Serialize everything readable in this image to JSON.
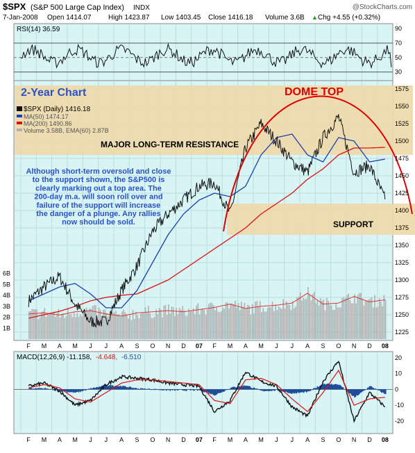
{
  "header": {
    "symbol": "$SPX",
    "name": "(S&P 500 Large Cap Index)",
    "exchange": "INDX",
    "watermark": "@StockCharts.com",
    "date": "7-Jan-2008",
    "open": "Open 1414.07",
    "high": "High 1423.87",
    "low": "Low 1403.45",
    "close": "Close 1416.18",
    "volume": "Volume 3.6B",
    "chg": "Chg +4.55 (+0.32%)",
    "chg_arrow": "▲"
  },
  "colors": {
    "panel_bg": "#d8f4f4",
    "zone": "#efd9aa",
    "price": "#000000",
    "ma50": "#1a3fb0",
    "ma200": "#dd1111",
    "dome": "#dd0000",
    "annot_blue": "#2a52c8",
    "volume_bar": "#b0b0b0",
    "macd_hist": "#1e4d9a",
    "signal": "#dd1111"
  },
  "rsi": {
    "label": "RSI(14) 36.59",
    "levels": [
      70,
      50,
      30
    ],
    "ticks": [
      "90",
      "70",
      "50",
      "30"
    ]
  },
  "main": {
    "legend": {
      "price": "$SPX (Daily) 1416.18",
      "ma50": "MA(50) 1474.17",
      "ma200": "MA(200) 1490.86",
      "volume": "Volume 3.58B, EMA(60) 2.87B"
    },
    "annotations": {
      "two_year": "2-Year Chart",
      "dome_top": "DOME TOP",
      "resistance": "MAJOR LONG-TERM RESISTANCE",
      "support": "SUPPORT",
      "commentary": [
        "Although short-term oversold and close",
        "to the support shown, the S&P500 is",
        "clearly marking out a top area. The",
        "200-day m.a. will soon roll over and",
        "failure of the support will increase",
        "the danger of a plunge. Any rallies",
        "now should be sold."
      ]
    },
    "price_ticks": [
      "1575",
      "1550",
      "1525",
      "1500",
      "1475",
      "1450",
      "1425",
      "1400",
      "1375",
      "1350",
      "1325",
      "1300",
      "1275",
      "1250",
      "1225"
    ],
    "volume_ticks": [
      "6B",
      "5B",
      "4B",
      "3B",
      "2B",
      "1B"
    ]
  },
  "macd": {
    "label_main": "MACD(12,26,9) -11.158,",
    "label_signal": "-4.648,",
    "label_hist": "-6.510",
    "ticks": [
      "20",
      "10",
      "0",
      "-10",
      "-20"
    ]
  },
  "x_labels": [
    "F",
    "M",
    "A",
    "M",
    "J",
    "J",
    "A",
    "S",
    "O",
    "N",
    "D",
    "07",
    "F",
    "M",
    "A",
    "M",
    "J",
    "J",
    "A",
    "S",
    "O",
    "N",
    "D",
    "08"
  ],
  "chart_data": {
    "type": "line",
    "title": "$SPX (S&P 500 Large Cap Index) INDX",
    "period": "Feb 2006 - Jan 2008 (daily)",
    "x": [
      "2006-02",
      "2006-03",
      "2006-04",
      "2006-05",
      "2006-06",
      "2006-07",
      "2006-08",
      "2006-09",
      "2006-10",
      "2006-11",
      "2006-12",
      "2007-01",
      "2007-02",
      "2007-03",
      "2007-04",
      "2007-05",
      "2007-06",
      "2007-07",
      "2007-08",
      "2007-09",
      "2007-10",
      "2007-11",
      "2007-12",
      "2008-01"
    ],
    "ylim": [
      1215,
      1585
    ],
    "series": [
      {
        "name": "$SPX (Daily)",
        "values": [
          1270,
          1290,
          1305,
          1265,
          1240,
          1240,
          1285,
          1320,
          1370,
          1395,
          1415,
          1435,
          1440,
          1395,
          1490,
          1525,
          1500,
          1470,
          1455,
          1505,
          1535,
          1455,
          1465,
          1416
        ]
      },
      {
        "name": "MA(50)",
        "values": [
          1270,
          1280,
          1290,
          1295,
          1280,
          1260,
          1260,
          1285,
          1325,
          1365,
          1395,
          1415,
          1425,
          1420,
          1435,
          1480,
          1505,
          1510,
          1480,
          1470,
          1505,
          1500,
          1470,
          1474
        ]
      },
      {
        "name": "MA(200)",
        "values": [
          1245,
          1250,
          1255,
          1262,
          1270,
          1275,
          1278,
          1280,
          1290,
          1300,
          1315,
          1330,
          1345,
          1360,
          1375,
          1395,
          1410,
          1425,
          1445,
          1460,
          1480,
          1490,
          1490,
          1491
        ]
      }
    ],
    "resistance_zone": [
      1480,
      1580
    ],
    "support_zone": [
      1365,
      1410
    ],
    "rsi": {
      "name": "RSI(14)",
      "last": 36.59,
      "ylim": [
        20,
        95
      ]
    },
    "volume": {
      "name": "Volume",
      "last": "3.58B",
      "ema60": "2.87B",
      "unit": "B",
      "ylim": [
        0,
        7
      ],
      "values": [
        2.3,
        2.4,
        2.2,
        2.5,
        2.6,
        2.3,
        2.1,
        2.4,
        2.5,
        2.6,
        2.5,
        2.7,
        2.9,
        3.2,
        2.8,
        3.0,
        3.1,
        3.3,
        4.2,
        3.2,
        3.3,
        3.9,
        3.4,
        3.6
      ]
    },
    "macd": {
      "name": "MACD(12,26,9)",
      "macd": -11.158,
      "signal": -4.648,
      "histogram": -6.51,
      "ylim": [
        -27,
        23
      ],
      "values": [
        2,
        4,
        -1,
        -10,
        -7,
        3,
        8,
        7,
        6,
        4,
        3,
        2,
        -14,
        -7,
        11,
        5,
        2,
        -11,
        -17,
        5,
        18,
        -20,
        -2,
        -11
      ],
      "signal_values": [
        1,
        3,
        1,
        -6,
        -8,
        -2,
        4,
        6,
        6,
        5,
        4,
        3,
        -7,
        -9,
        6,
        7,
        3,
        -6,
        -14,
        -2,
        12,
        -10,
        -6,
        -5
      ]
    }
  }
}
